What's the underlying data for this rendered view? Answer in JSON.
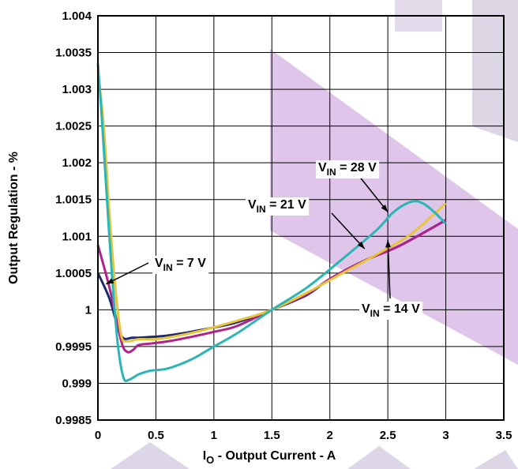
{
  "chart_data": {
    "type": "line",
    "xlabel": {
      "main": "I",
      "sub": "O",
      "rest": " - Output Current - A"
    },
    "ylabel": "Output Regulation - %",
    "xlim": [
      0,
      3.5
    ],
    "ylim": [
      0.9985,
      1.004
    ],
    "x_ticks": [
      0,
      0.5,
      1,
      1.5,
      2,
      2.5,
      3,
      3.5
    ],
    "x_tick_labels": [
      "0",
      "0.5",
      "1",
      "1.5",
      "2",
      "2.5",
      "3",
      "3.5"
    ],
    "y_ticks": [
      0.9985,
      0.999,
      0.9995,
      1,
      1.0005,
      1.001,
      1.0015,
      1.002,
      1.0025,
      1.003,
      1.0035,
      1.004
    ],
    "y_tick_labels": [
      "0.9985",
      "0.999",
      "0.9995",
      "1",
      "1.0005",
      "1.001",
      "1.0015",
      "1.002",
      "1.0025",
      "1.003",
      "1.0035",
      "1.004"
    ],
    "grid": true,
    "series": [
      {
        "label_main": "V",
        "label_sub": "IN",
        "label_rest": " = 7 V",
        "color": "#1f2a6b",
        "points": [
          [
            0,
            1.0005
          ],
          [
            0.1,
            1.00015
          ],
          [
            0.2,
            0.99965
          ],
          [
            0.3,
            0.99962
          ],
          [
            0.45,
            0.99963
          ],
          [
            0.6,
            0.99965
          ],
          [
            0.8,
            0.9997
          ],
          [
            1.0,
            0.99976
          ],
          [
            1.2,
            0.99983
          ],
          [
            1.5,
            1.0
          ],
          [
            1.8,
            1.0002
          ],
          [
            2.0,
            1.00042
          ],
          [
            2.3,
            1.00067
          ],
          [
            2.6,
            1.00087
          ],
          [
            3.0,
            1.00122
          ]
        ]
      },
      {
        "label_main": "V",
        "label_sub": "IN",
        "label_rest": " = 14 V",
        "color": "#b0218a",
        "points": [
          [
            0,
            1.00088
          ],
          [
            0.1,
            1.0003
          ],
          [
            0.2,
            0.99958
          ],
          [
            0.25,
            0.99943
          ],
          [
            0.3,
            0.99945
          ],
          [
            0.35,
            0.99952
          ],
          [
            0.45,
            0.99954
          ],
          [
            0.6,
            0.99957
          ],
          [
            0.8,
            0.99963
          ],
          [
            1.0,
            0.9997
          ],
          [
            1.2,
            0.99978
          ],
          [
            1.5,
            1.0
          ],
          [
            1.8,
            1.00021
          ],
          [
            2.0,
            1.00042
          ],
          [
            2.3,
            1.00067
          ],
          [
            2.6,
            1.00087
          ],
          [
            3.0,
            1.00122
          ]
        ]
      },
      {
        "label_main": "V",
        "label_sub": "IN",
        "label_rest": " = 21 V",
        "color": "#e8c43a",
        "points": [
          [
            0,
            1.00325
          ],
          [
            0.05,
            1.0025
          ],
          [
            0.1,
            1.0013
          ],
          [
            0.15,
            1.0003
          ],
          [
            0.2,
            0.99966
          ],
          [
            0.25,
            0.99957
          ],
          [
            0.35,
            0.9996
          ],
          [
            0.5,
            0.9996
          ],
          [
            0.7,
            0.99965
          ],
          [
            0.9,
            0.99972
          ],
          [
            1.2,
            0.99985
          ],
          [
            1.5,
            1.0
          ],
          [
            1.8,
            1.00023
          ],
          [
            2.1,
            1.00049
          ],
          [
            2.4,
            1.00075
          ],
          [
            2.7,
            1.00103
          ],
          [
            3.0,
            1.00145
          ]
        ]
      },
      {
        "label_main": "V",
        "label_sub": "IN",
        "label_rest": " = 28 V",
        "color": "#2bb5b5",
        "points": [
          [
            0,
            1.00335
          ],
          [
            0.03,
            1.0027
          ],
          [
            0.07,
            1.0017
          ],
          [
            0.12,
            1.0005
          ],
          [
            0.17,
            0.99955
          ],
          [
            0.22,
            0.99908
          ],
          [
            0.27,
            0.99905
          ],
          [
            0.35,
            0.99912
          ],
          [
            0.45,
            0.99917
          ],
          [
            0.6,
            0.9992
          ],
          [
            0.8,
            0.99932
          ],
          [
            1.0,
            0.9995
          ],
          [
            1.2,
            0.99968
          ],
          [
            1.5,
            1.0
          ],
          [
            1.8,
            1.0003
          ],
          [
            2.1,
            1.00068
          ],
          [
            2.4,
            1.00108
          ],
          [
            2.55,
            1.00133
          ],
          [
            2.7,
            1.00147
          ],
          [
            2.8,
            1.00145
          ],
          [
            2.9,
            1.00133
          ],
          [
            3.0,
            1.00117
          ]
        ]
      }
    ]
  }
}
